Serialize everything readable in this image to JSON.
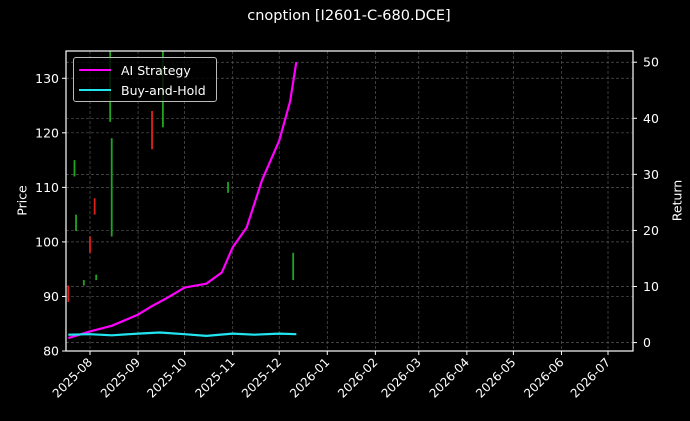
{
  "chart_data": {
    "type": "line",
    "title": "cnoption [I2601-C-680.DCE]",
    "xlabel": "",
    "ylabel_left": "Price",
    "ylabel_right": "Return",
    "ylim_left": [
      80,
      135
    ],
    "ylim_right": [
      -1.5,
      52
    ],
    "yticks_left": [
      80,
      90,
      100,
      110,
      120,
      130
    ],
    "yticks_right": [
      0,
      10,
      20,
      30,
      40,
      50
    ],
    "xticks": [
      "2025-08",
      "2025-09",
      "2025-10",
      "2025-11",
      "2025-12",
      "2026-01",
      "2026-02",
      "2026-03",
      "2026-04",
      "2026-05",
      "2026-06",
      "2026-07"
    ],
    "grid": true,
    "legend_position": "upper left",
    "background": "#000000",
    "series": [
      {
        "name": "AI Strategy",
        "axis": "right",
        "color": "#ff00ff",
        "x": [
          "2025-07-18",
          "2025-08-01",
          "2025-08-15",
          "2025-09-01",
          "2025-09-10",
          "2025-09-20",
          "2025-10-01",
          "2025-10-15",
          "2025-10-25",
          "2025-11-01",
          "2025-11-10",
          "2025-11-20",
          "2025-12-01",
          "2025-12-08",
          "2025-12-12"
        ],
        "values": [
          0.8,
          2,
          3,
          5,
          6.5,
          8,
          9.8,
          10.5,
          12.5,
          17,
          20.5,
          29,
          36,
          43,
          50
        ]
      },
      {
        "name": "Buy-and-Hold",
        "axis": "right",
        "color": "#22e5f0",
        "x": [
          "2025-07-18",
          "2025-08-01",
          "2025-08-15",
          "2025-09-01",
          "2025-09-15",
          "2025-10-01",
          "2025-10-15",
          "2025-11-01",
          "2025-11-15",
          "2025-12-01",
          "2025-12-12"
        ],
        "values": [
          1.4,
          1.5,
          1.3,
          1.6,
          1.8,
          1.5,
          1.2,
          1.6,
          1.4,
          1.6,
          1.5
        ]
      }
    ],
    "candles": [
      {
        "date": "2025-07-18",
        "low": 89,
        "high": 92,
        "dir": "down"
      },
      {
        "date": "2025-07-22",
        "low": 112,
        "high": 115,
        "dir": "up"
      },
      {
        "date": "2025-07-23",
        "low": 102,
        "high": 105,
        "dir": "up"
      },
      {
        "date": "2025-07-28",
        "low": 92,
        "high": 93,
        "dir": "up"
      },
      {
        "date": "2025-08-01",
        "low": 98,
        "high": 101,
        "dir": "down"
      },
      {
        "date": "2025-08-04",
        "low": 105,
        "high": 108,
        "dir": "down"
      },
      {
        "date": "2025-08-05",
        "low": 93,
        "high": 94,
        "dir": "up"
      },
      {
        "date": "2025-08-15",
        "low": 101,
        "high": 119,
        "dir": "up"
      },
      {
        "date": "2025-08-14",
        "low": 122,
        "high": 135,
        "dir": "up"
      },
      {
        "date": "2025-09-10",
        "low": 117,
        "high": 124,
        "dir": "down"
      },
      {
        "date": "2025-09-17",
        "low": 121,
        "high": 135,
        "dir": "up"
      },
      {
        "date": "2025-10-29",
        "low": 109,
        "high": 111,
        "dir": "up"
      },
      {
        "date": "2025-12-10",
        "low": 93,
        "high": 98,
        "dir": "up"
      }
    ]
  }
}
